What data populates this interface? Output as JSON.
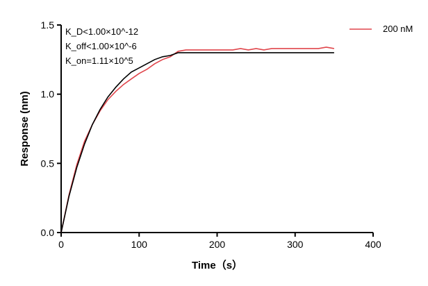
{
  "chart_data": {
    "type": "line",
    "xlabel": "Time（s）",
    "ylabel": "Response (nm)",
    "xlim": [
      0,
      400
    ],
    "ylim": [
      0,
      1.5
    ],
    "xticks": [
      "0",
      "100",
      "200",
      "300",
      "400"
    ],
    "yticks": [
      "0.0",
      "0.5",
      "1.0",
      "1.5"
    ],
    "grid": false,
    "legend_placement": "top-right",
    "annotations": {
      "kd": "K_D<1.00×10^-12",
      "koff": "K_off<1.00×10^-6",
      "kon": "K_on=1.11×10^5"
    },
    "annotation_parts": {
      "kd": {
        "k": "K",
        "sub": "D",
        "rel": "<1.00×10",
        "sup": "-12"
      },
      "koff": {
        "k": "K",
        "sub": "off",
        "rel": "<1.00×10",
        "sup": "-6"
      },
      "kon": {
        "k": "K",
        "sub": "on",
        "rel": "=1.11×10",
        "sup": "5"
      }
    },
    "x": [
      0,
      10,
      20,
      30,
      40,
      50,
      60,
      70,
      80,
      90,
      100,
      110,
      120,
      130,
      140,
      150,
      160,
      170,
      180,
      190,
      200,
      210,
      220,
      230,
      240,
      250,
      260,
      270,
      280,
      290,
      300,
      310,
      320,
      330,
      340,
      350
    ],
    "series": [
      {
        "name": "200 nM",
        "color": "#e0454b",
        "values": [
          0,
          0.27,
          0.49,
          0.66,
          0.78,
          0.88,
          0.96,
          1.02,
          1.07,
          1.11,
          1.15,
          1.18,
          1.22,
          1.25,
          1.27,
          1.31,
          1.32,
          1.32,
          1.32,
          1.32,
          1.32,
          1.32,
          1.32,
          1.33,
          1.32,
          1.33,
          1.32,
          1.33,
          1.33,
          1.33,
          1.33,
          1.33,
          1.33,
          1.33,
          1.34,
          1.33
        ]
      },
      {
        "role": "fit",
        "color": "#000000",
        "values": [
          0,
          0.26,
          0.47,
          0.64,
          0.78,
          0.89,
          0.98,
          1.05,
          1.11,
          1.16,
          1.19,
          1.22,
          1.25,
          1.27,
          1.28,
          1.3,
          1.3,
          1.3,
          1.3,
          1.3,
          1.3,
          1.3,
          1.3,
          1.3,
          1.3,
          1.3,
          1.3,
          1.3,
          1.3,
          1.3,
          1.3,
          1.3,
          1.3,
          1.3,
          1.3,
          1.3
        ]
      }
    ]
  }
}
